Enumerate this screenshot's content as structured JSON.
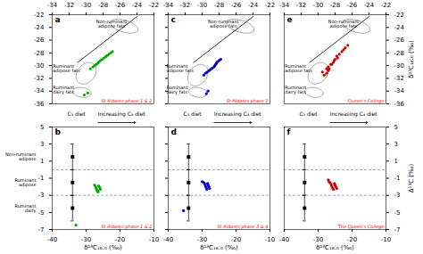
{
  "chart_data": [
    {
      "type": "scatter",
      "title": "a",
      "color": "#00aa00",
      "x": [
        -29.5,
        -29.2,
        -29.0,
        -28.8,
        -28.6,
        -28.5,
        -28.3,
        -28.1,
        -27.9,
        -27.7,
        -27.5,
        -27.3,
        -27.1,
        -26.9,
        -29.8,
        -30.2
      ],
      "values": [
        -30.5,
        -30.2,
        -30.0,
        -29.8,
        -29.6,
        -29.4,
        -29.2,
        -29.0,
        -28.8,
        -28.6,
        -28.4,
        -28.2,
        -28.0,
        -27.8,
        -34.3,
        -34.6
      ],
      "xlim": [
        -34,
        -22
      ],
      "ylim": [
        -36,
        -22
      ],
      "xticks": [
        -34,
        -32,
        -30,
        -28,
        -26,
        -24,
        -22
      ],
      "yticks": [
        -36,
        -34,
        -32,
        -30,
        -28,
        -26,
        -24,
        -22
      ],
      "grid": false,
      "tick_labels": true,
      "lines": [
        {
          "x": [
            -31,
            -24.0
          ],
          "y": [
            -29.5,
            -22.3
          ]
        }
      ],
      "ellipses": [
        {
          "x": -25.5,
          "y": -23.8,
          "width": 3.5,
          "height": 1.8,
          "angle": -25
        },
        {
          "x": -30.0,
          "y": -31.2,
          "width": 2.2,
          "height": 3.5,
          "angle": -20
        },
        {
          "x": -30.5,
          "y": -34.2,
          "width": 2.2,
          "height": 1.5,
          "angle": -15
        }
      ],
      "annotations": [
        {
          "text": "Non-ruminant\nadipose fats",
          "x": -27.0,
          "y": -23.5
        },
        {
          "text": "Ruminant\nadipose fats",
          "x": -33.5,
          "y": -30.5
        },
        {
          "text": "Ruminant\ndairy fats",
          "x": -33.5,
          "y": -33.8
        },
        {
          "text": "St Aldates phase 1 & 2",
          "color": "red",
          "position": "bottom-right"
        }
      ]
    },
    {
      "type": "scatter",
      "title": "c",
      "color": "#0000cc",
      "x": [
        -29.8,
        -29.6,
        -29.4,
        -29.2,
        -29.0,
        -28.8,
        -28.6,
        -28.5,
        -28.4,
        -28.3,
        -28.2,
        -28.0,
        -27.8,
        -29.5,
        -29.3
      ],
      "values": [
        -31.5,
        -31.2,
        -31.0,
        -30.8,
        -30.6,
        -30.4,
        -30.2,
        -30.0,
        -29.8,
        -29.6,
        -29.4,
        -29.2,
        -29.0,
        -34.4,
        -34.0
      ],
      "xlim": [
        -34,
        -22
      ],
      "ylim": [
        -36,
        -22
      ],
      "xticks": [
        -34,
        -32,
        -30,
        -28,
        -26,
        -24,
        -22
      ],
      "yticks": [
        -36,
        -34,
        -32,
        -30,
        -28,
        -26,
        -24,
        -22
      ],
      "grid": false,
      "tick_labels": "x",
      "lines": [
        {
          "x": [
            -31,
            -24.0
          ],
          "y": [
            -29.5,
            -22.3
          ]
        }
      ],
      "ellipses": [
        {
          "x": -25.5,
          "y": -23.8,
          "width": 3.5,
          "height": 1.8,
          "angle": -25
        },
        {
          "x": -30.5,
          "y": -31.5,
          "width": 2.2,
          "height": 3.5,
          "angle": -20
        },
        {
          "x": -30.5,
          "y": -34.2,
          "width": 2.2,
          "height": 1.5,
          "angle": -15
        }
      ],
      "annotations": [
        {
          "text": "Non-ruminant\nadipose fats",
          "x": -27.5,
          "y": -23.5
        },
        {
          "text": "Ruminant\nadipose fats",
          "x": -33.8,
          "y": -30.5
        },
        {
          "text": "Ruminant\ndairy fats",
          "x": -33.8,
          "y": -33.8
        },
        {
          "text": "St Aldates phase 3",
          "color": "red",
          "position": "bottom-right"
        }
      ]
    },
    {
      "type": "scatter",
      "title": "e",
      "color": "#cc0000",
      "ylabel": "δ¹³C₁₈:₀ (‰)",
      "x": [
        -29.5,
        -29.0,
        -28.8,
        -28.5,
        -28.2,
        -28.0,
        -27.8,
        -27.5,
        -27.2,
        -27.0,
        -26.8,
        -26.5,
        -28.8,
        -29.0,
        -29.3,
        -28.7,
        -28.4,
        -28.1,
        -27.7
      ],
      "values": [
        -31.0,
        -30.5,
        -30.2,
        -29.8,
        -29.5,
        -29.0,
        -28.5,
        -28.2,
        -27.8,
        -27.5,
        -27.2,
        -26.8,
        -30.8,
        -31.2,
        -31.5,
        -30.5,
        -29.8,
        -29.2,
        -28.8
      ],
      "xlim": [
        -34,
        -22
      ],
      "ylim": [
        -36,
        -22
      ],
      "xticks": [
        -34,
        -32,
        -30,
        -28,
        -26,
        -24,
        -22
      ],
      "yticks": [
        -36,
        -34,
        -32,
        -30,
        -28,
        -26,
        -24,
        -22
      ],
      "grid": false,
      "tick_labels": true,
      "lines": [
        {
          "x": [
            -31,
            -24.0
          ],
          "y": [
            -29.5,
            -22.3
          ]
        }
      ],
      "ellipses": [
        {
          "x": -25.5,
          "y": -23.8,
          "width": 3.5,
          "height": 1.8,
          "angle": -25
        },
        {
          "x": -30.0,
          "y": -31.2,
          "width": 2.2,
          "height": 3.5,
          "angle": -20
        },
        {
          "x": -30.5,
          "y": -34.2,
          "width": 2.2,
          "height": 1.5,
          "angle": -15
        }
      ],
      "annotations": [
        {
          "text": "Non-ruminant\nadipose fats",
          "x": -27.0,
          "y": -23.5
        },
        {
          "text": "Ruminant\nadipose fats",
          "x": -33.5,
          "y": -30.5
        },
        {
          "text": "Ruminant\ndairy fats",
          "x": -33.5,
          "y": -33.8
        },
        {
          "text": "Queen's College",
          "color": "red",
          "position": "bottom-right"
        }
      ]
    },
    {
      "type": "scatter",
      "title": "b",
      "color": "#00aa00",
      "xlabel": "δ¹³C₁₆:₀ (‰)",
      "x": [
        -27.5,
        -27.2,
        -27.0,
        -26.8,
        -26.5,
        -26.3,
        -26.0,
        -25.8,
        -33.0,
        -26.5
      ],
      "values": [
        -1.8,
        -2.0,
        -2.2,
        -2.4,
        -2.6,
        -1.9,
        -2.1,
        -2.3,
        -6.5,
        -2.5
      ],
      "xlim": [
        -40,
        -10
      ],
      "ylim": [
        -7,
        5
      ],
      "xticks": [
        -40,
        -30,
        -20,
        -10
      ],
      "yticks": [
        -7,
        -5,
        -3,
        -1,
        1,
        3,
        5
      ],
      "grid": false,
      "tick_labels": true,
      "hlines": [
        0,
        -3
      ],
      "ref_points": [
        {
          "x": -34,
          "y": 1.5,
          "yerr": 1.5,
          "label": "Non-ruminant\nadipose"
        },
        {
          "x": -34,
          "y": -1.5,
          "yerr": 1.5,
          "label": "Ruminant\nadipose"
        },
        {
          "x": -34,
          "y": -4.5,
          "yerr": 1.5,
          "label": "Ruminant\ndairy"
        }
      ],
      "annotations": [
        {
          "text": "C₃ diet",
          "position": "above-left"
        },
        {
          "text": "Increasing C₄ diet",
          "position": "above",
          "arrow": true
        },
        {
          "text": "St Aldates phase 1 & 2",
          "color": "red",
          "position": "bottom-right"
        }
      ]
    },
    {
      "type": "scatter",
      "title": "d",
      "color": "#0000cc",
      "xlabel": "δ¹³C₁₆:₀ (‰)",
      "x": [
        -29.5,
        -29.2,
        -29.0,
        -28.8,
        -28.6,
        -28.4,
        -28.2,
        -28.0,
        -27.8,
        -30.0,
        -35.5
      ],
      "values": [
        -1.5,
        -1.7,
        -1.9,
        -2.1,
        -2.3,
        -1.6,
        -1.8,
        -2.0,
        -2.2,
        -1.4,
        -4.8
      ],
      "xlim": [
        -40,
        -10
      ],
      "ylim": [
        -7,
        5
      ],
      "xticks": [
        -40,
        -30,
        -20,
        -10
      ],
      "yticks": [
        -7,
        -5,
        -3,
        -1,
        1,
        3,
        5
      ],
      "grid": false,
      "tick_labels": "x",
      "hlines": [
        0,
        -3
      ],
      "ref_points": [
        {
          "x": -34,
          "y": 1.5,
          "yerr": 1.5
        },
        {
          "x": -34,
          "y": -1.5,
          "yerr": 1.5
        },
        {
          "x": -34,
          "y": -4.5,
          "yerr": 1.5
        }
      ],
      "annotations": [
        {
          "text": "C₃ diet",
          "position": "above-left"
        },
        {
          "text": "Increasing C₄ diet",
          "position": "above",
          "arrow": true
        },
        {
          "text": "St Aldates phase 3 & 4",
          "color": "red",
          "position": "bottom-right"
        }
      ]
    },
    {
      "type": "scatter",
      "title": "f",
      "color": "#cc0000",
      "xlabel": "δ¹³C₁₆:₀ (‰)",
      "ylabel": "Δ¹³C (‰)",
      "x": [
        -26.5,
        -26.2,
        -26.0,
        -25.8,
        -25.5,
        -25.2,
        -25.0,
        -24.8,
        -24.5,
        -26.8,
        -27.0
      ],
      "values": [
        -1.5,
        -1.7,
        -1.9,
        -2.1,
        -2.3,
        -1.6,
        -1.8,
        -2.0,
        -2.2,
        -1.4,
        -1.2
      ],
      "xlim": [
        -40,
        -10
      ],
      "ylim": [
        -7,
        5
      ],
      "xticks": [
        -40,
        -30,
        -20,
        -10
      ],
      "yticks": [
        -7,
        -5,
        -3,
        -1,
        1,
        3,
        5
      ],
      "grid": false,
      "tick_labels": true,
      "hlines": [
        0,
        -3
      ],
      "ref_points": [
        {
          "x": -34,
          "y": 1.5,
          "yerr": 1.5
        },
        {
          "x": -34,
          "y": -1.5,
          "yerr": 1.5
        },
        {
          "x": -34,
          "y": -4.5,
          "yerr": 1.5
        }
      ],
      "annotations": [
        {
          "text": "C₃ diet",
          "position": "above-left"
        },
        {
          "text": "Increasing C₄ diet",
          "position": "above",
          "arrow": true
        },
        {
          "text": "The Queen's College",
          "color": "red",
          "position": "bottom-right"
        }
      ]
    }
  ]
}
